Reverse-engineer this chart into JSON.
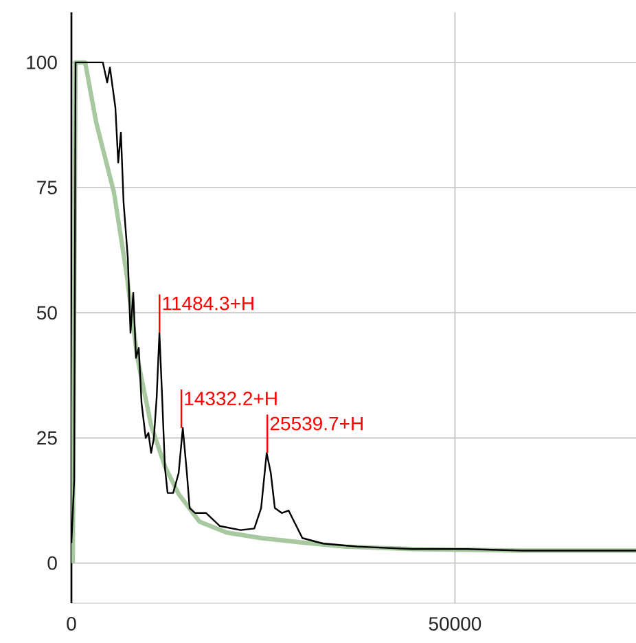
{
  "chart_data": {
    "type": "line",
    "xlim": [
      0,
      73600
    ],
    "ylim": [
      -8,
      110
    ],
    "xticks": [
      0,
      50000
    ],
    "yticks": [
      0,
      25,
      50,
      75,
      100
    ],
    "grid": true,
    "series": [
      {
        "color": "#000000",
        "x": [
          0,
          360,
          540,
          2500,
          4100,
          4660,
          5020,
          5730,
          6100,
          6450,
          6800,
          7350,
          7700,
          8060,
          8420,
          8780,
          9140,
          9680,
          10040,
          10390,
          10750,
          11110,
          11470,
          11830,
          12190,
          12540,
          13260,
          13980,
          14520,
          15050,
          15410,
          16130,
          17560,
          19350,
          22040,
          23840,
          24730,
          25450,
          25990,
          26520,
          27420,
          28320,
          29030,
          30110,
          32800,
          37280,
          44440,
          51610,
          58780,
          73600
        ],
        "values": [
          4,
          16.5,
          100,
          100,
          100,
          96,
          99,
          91,
          80,
          86,
          72,
          61,
          46,
          54,
          41,
          43,
          32,
          25,
          26,
          22,
          25,
          33,
          46,
          33,
          19,
          14,
          14,
          18,
          27,
          18,
          11,
          10,
          10,
          7.4,
          6.6,
          6.9,
          11,
          22,
          18,
          11,
          10,
          10.5,
          8.3,
          5,
          3.9,
          3.3,
          2.8,
          2.8,
          2.5,
          2.5
        ]
      },
      {
        "color": "#a8c8a0",
        "x": [
          180,
          540,
          1790,
          3230,
          5550,
          7170,
          8600,
          10390,
          12190,
          13980,
          16670,
          20250,
          24730,
          30110,
          35480,
          44440,
          58780,
          73600
        ],
        "values": [
          0,
          100,
          100,
          88,
          74,
          58,
          41,
          27.5,
          19.3,
          13.8,
          8.3,
          6.1,
          5,
          4.1,
          3.3,
          2.8,
          2.5,
          2.5
        ]
      }
    ],
    "annotations": [
      {
        "text": "11484.3+H",
        "x": 11484.3,
        "y": 46
      },
      {
        "text": "14332.2+H",
        "x": 14332.2,
        "y": 27
      },
      {
        "text": "25539.7+H",
        "x": 25539.7,
        "y": 22
      }
    ]
  }
}
